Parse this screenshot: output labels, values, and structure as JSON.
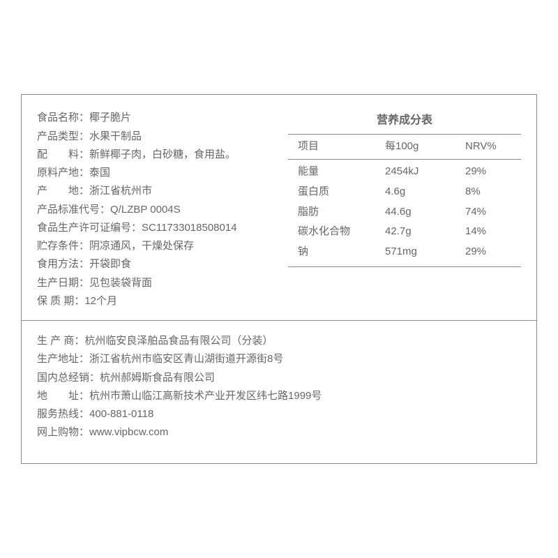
{
  "colors": {
    "text": "#666666",
    "border": "#888888",
    "background": "#ffffff"
  },
  "product_info": [
    {
      "label": "食品名称：",
      "value": "椰子脆片"
    },
    {
      "label": "产品类型：",
      "value": "水果干制品"
    },
    {
      "label": "配　　料：",
      "value": "新鲜椰子肉，白砂糖，食用盐。"
    },
    {
      "label": "原料产地：",
      "value": "泰国"
    },
    {
      "label": "产　　地：",
      "value": "浙江省杭州市"
    },
    {
      "label": "产品标准代号：",
      "value": "Q/LZBP 0004S"
    },
    {
      "label": "食品生产许可证编号：",
      "value": "SC11733018508014"
    },
    {
      "label": "贮存条件：",
      "value": "阴凉通风，干燥处保存"
    },
    {
      "label": "食用方法：",
      "value": "开袋即食"
    },
    {
      "label": "生产日期：",
      "value": "见包装袋背面"
    },
    {
      "label": "保 质 期：",
      "value": "12个月"
    }
  ],
  "nutrition": {
    "title": "营养成分表",
    "headers": {
      "col1": "项目",
      "col2": "每100g",
      "col3": "NRV%"
    },
    "rows": [
      {
        "name": "能量",
        "per100g": "2454kJ",
        "nrv": "29%"
      },
      {
        "name": "蛋白质",
        "per100g": "4.6g",
        "nrv": "8%"
      },
      {
        "name": "脂肪",
        "per100g": "44.6g",
        "nrv": "74%"
      },
      {
        "name": "碳水化合物",
        "per100g": "42.7g",
        "nrv": "14%"
      },
      {
        "name": "钠",
        "per100g": "571mg",
        "nrv": "29%"
      }
    ]
  },
  "manufacturer_info": [
    {
      "label": "生 产 商：",
      "value": "杭州临安良泽舶品食品有限公司（分装）"
    },
    {
      "label": "生产地址：",
      "value": "浙江省杭州市临安区青山湖街道开源街8号"
    },
    {
      "label": "国内总经销：",
      "value": "杭州郝姆斯食品有限公司"
    },
    {
      "label": "地　　址：",
      "value": "杭州市萧山临江高新技术产业开发区纬七路1999号"
    },
    {
      "label": "服务热线：",
      "value": "400-881-0118"
    },
    {
      "label": "网上购物：",
      "value": "www.vipbcw.com"
    }
  ]
}
